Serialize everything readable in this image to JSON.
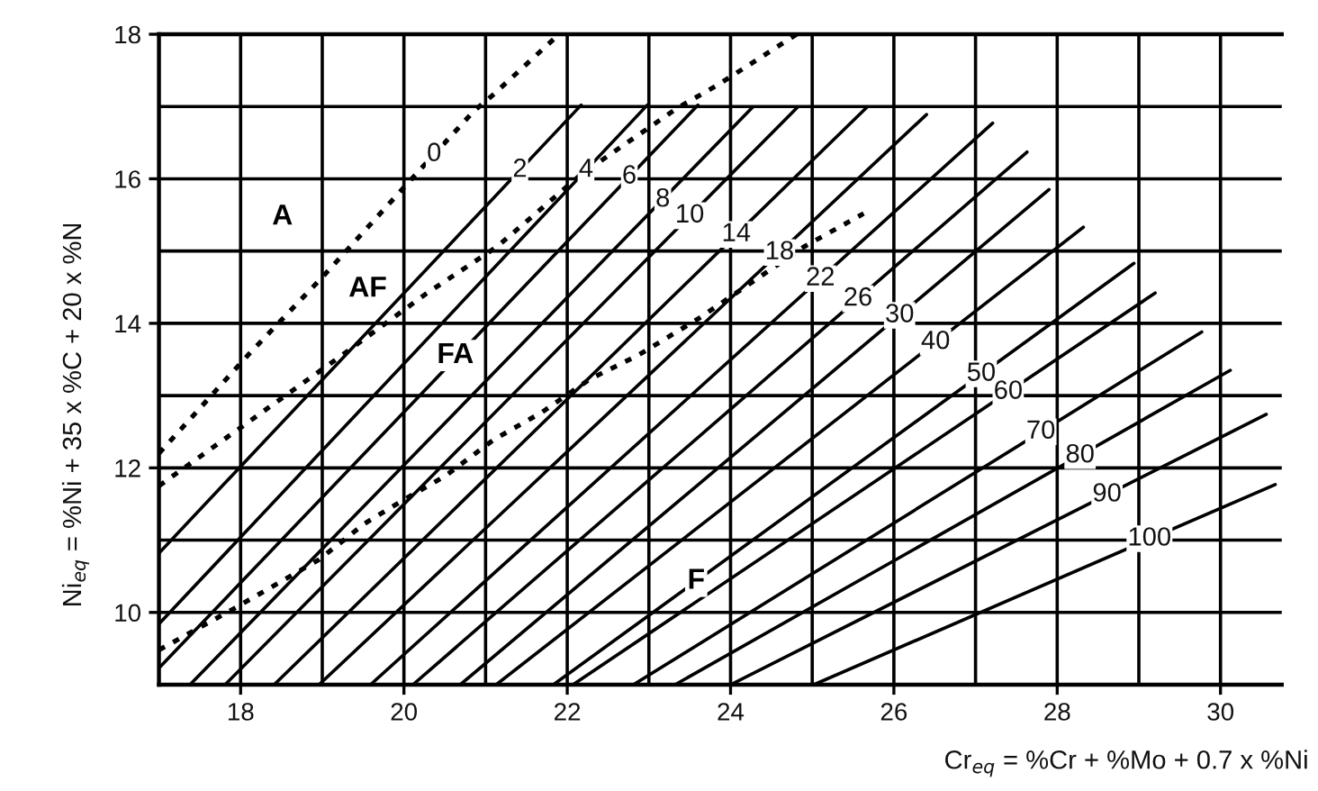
{
  "chart_data": {
    "type": "line",
    "xlabel": "Cr$_{eq}$ = %Cr + %Mo + 0.7 x %Ni",
    "ylabel": "Ni$_{eq}$ = %Ni + 35 x %C + 20 x %N",
    "xlim": [
      17,
      30.75
    ],
    "ylim": [
      9,
      18
    ],
    "xticks": [
      18,
      {
        "value": 19,
        "label": null
      },
      20,
      {
        "value": 21,
        "label": null
      },
      22,
      {
        "value": 23,
        "label": null
      },
      24,
      {
        "value": 25,
        "label": null
      },
      26,
      {
        "value": 27,
        "label": null
      },
      28,
      {
        "value": 29,
        "label": null
      },
      30
    ],
    "yticks": [
      10,
      {
        "value": 11,
        "label": null
      },
      12,
      {
        "value": 13,
        "label": null
      },
      14,
      {
        "value": 15,
        "label": null
      },
      16,
      {
        "value": 17,
        "label": null
      },
      18
    ],
    "grid": true,
    "series": [
      {
        "color": "#000000",
        "line_style": "dotted",
        "x": [
          17.0,
          18.09,
          19.01,
          20.04,
          20.85,
          21.11,
          21.88
        ],
        "values": [
          12.2,
          13.56,
          14.65,
          15.93,
          16.93,
          17.18,
          17.98
        ]
      },
      {
        "color": "#000000",
        "line_style": "dotted",
        "x": [
          17.0,
          19.23,
          20.26,
          21.14,
          22.17,
          23.35,
          23.86,
          24.81
        ],
        "values": [
          11.75,
          13.55,
          14.4,
          15.06,
          16.06,
          16.98,
          17.31,
          18.0
        ]
      },
      {
        "color": "#000000",
        "line_style": "dotted",
        "x": [
          17.0,
          17.93,
          18.96,
          19.52,
          20.0,
          20.51,
          21.1,
          21.69,
          22.28,
          22.87,
          23.6,
          24.9,
          25.63
        ],
        "values": [
          9.48,
          10.06,
          10.73,
          11.23,
          11.56,
          11.89,
          12.39,
          12.77,
          13.23,
          13.56,
          14.06,
          15.06,
          15.52
        ]
      },
      {
        "color": "#000000",
        "line_style": "solid",
        "x": [
          17.0,
          22.17
        ],
        "values": [
          10.82,
          17.02
        ]
      },
      {
        "color": "#000000",
        "line_style": "solid",
        "x": [
          17.0,
          22.98
        ],
        "values": [
          9.84,
          17.02
        ]
      },
      {
        "color": "#000000",
        "line_style": "solid",
        "x": [
          17.0,
          23.6
        ],
        "values": [
          9.23,
          17.02
        ]
      },
      {
        "color": "#000000",
        "line_style": "solid",
        "x": [
          17.38,
          24.27
        ],
        "values": [
          9,
          16.99
        ]
      },
      {
        "color": "#000000",
        "line_style": "solid",
        "x": [
          17.81,
          24.82
        ],
        "values": [
          9,
          16.99
        ]
      },
      {
        "color": "#000000",
        "line_style": "solid",
        "x": [
          18.41,
          25.67
        ],
        "values": [
          9,
          16.99
        ]
      },
      {
        "color": "#000000",
        "line_style": "solid",
        "x": [
          18.96,
          26.4
        ],
        "values": [
          9,
          16.89
        ]
      },
      {
        "color": "#000000",
        "line_style": "solid",
        "x": [
          19.59,
          27.21
        ],
        "values": [
          9,
          16.77
        ]
      },
      {
        "color": "#000000",
        "line_style": "solid",
        "x": [
          20.11,
          27.63
        ],
        "values": [
          9,
          16.37
        ]
      },
      {
        "color": "#000000",
        "line_style": "solid",
        "x": [
          20.69,
          27.9
        ],
        "values": [
          9,
          15.85
        ]
      },
      {
        "color": "#000000",
        "line_style": "solid",
        "x": [
          21.13,
          28.32
        ],
        "values": [
          9,
          15.33
        ]
      },
      {
        "color": "#000000",
        "line_style": "solid",
        "x": [
          21.83,
          28.94
        ],
        "values": [
          9,
          14.83
        ]
      },
      {
        "color": "#000000",
        "line_style": "solid",
        "x": [
          22.07,
          29.2
        ],
        "values": [
          9,
          14.42
        ]
      },
      {
        "color": "#000000",
        "line_style": "solid",
        "x": [
          22.81,
          29.77
        ],
        "values": [
          9,
          13.88
        ]
      },
      {
        "color": "#000000",
        "line_style": "solid",
        "x": [
          23.32,
          30.12
        ],
        "values": [
          9,
          13.35
        ]
      },
      {
        "color": "#000000",
        "line_style": "solid",
        "x": [
          24.0,
          30.56
        ],
        "values": [
          9,
          12.74
        ]
      },
      {
        "color": "#000000",
        "line_style": "solid",
        "x": [
          25.02,
          30.67
        ],
        "values": [
          9,
          11.77
        ]
      }
    ],
    "annotations": [
      "A",
      "AF",
      "FA",
      "F",
      {
        "text": "0",
        "x": 20.37,
        "y": 16.34
      },
      {
        "text": "2",
        "x": 21.42,
        "y": 16.12
      },
      {
        "text": "4",
        "x": 22.23,
        "y": 16.12
      },
      {
        "text": "6",
        "x": 22.76,
        "y": 16.03
      },
      {
        "text": "8",
        "x": 23.17,
        "y": 15.71
      },
      {
        "text": "10",
        "x": 23.5,
        "y": 15.49
      },
      {
        "text": "14",
        "x": 24.07,
        "y": 15.23
      },
      {
        "text": "18",
        "x": 24.6,
        "y": 14.98
      },
      {
        "text": "22",
        "x": 25.1,
        "y": 14.62
      },
      {
        "text": "26",
        "x": 25.56,
        "y": 14.34
      },
      {
        "text": "30",
        "x": 26.07,
        "y": 14.11
      },
      {
        "text": "40",
        "x": 26.51,
        "y": 13.74
      },
      {
        "text": "50",
        "x": 27.07,
        "y": 13.3
      },
      {
        "text": "60",
        "x": 27.4,
        "y": 13.05
      },
      {
        "text": "70",
        "x": 27.8,
        "y": 12.5
      },
      {
        "text": "80",
        "x": 28.28,
        "y": 12.17
      },
      {
        "text": "90",
        "x": 28.61,
        "y": 11.63
      },
      {
        "text": "100",
        "x": 29.13,
        "y": 11.02
      }
    ]
  }
}
